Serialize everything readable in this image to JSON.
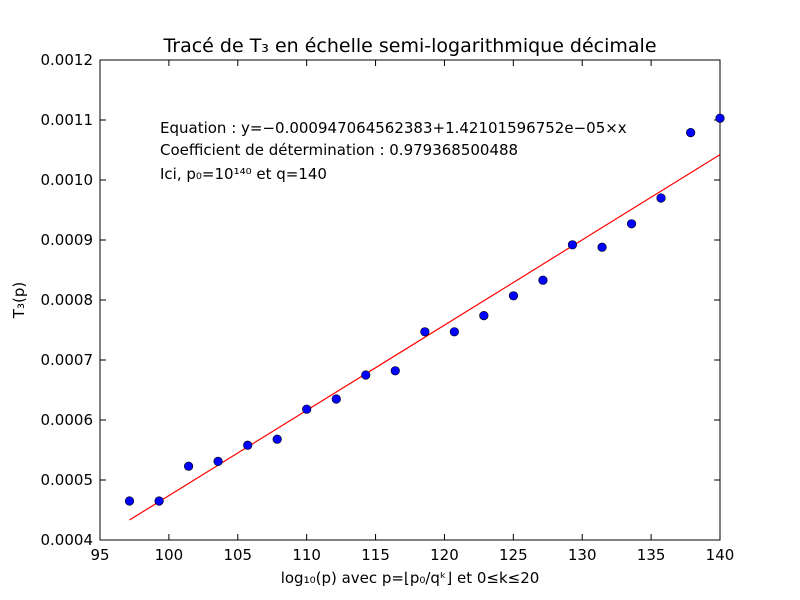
{
  "chart_data": {
    "type": "scatter",
    "title": "Tracé de T₃ en échelle semi-logarithmique décimale",
    "xlabel": "log₁₀(p) avec p=⌊p₀/qᵏ⌋ et 0≤k≤20",
    "ylabel": "T₃(p)",
    "xlim": [
      95,
      140
    ],
    "ylim": [
      0.0004,
      0.0012
    ],
    "grid": false,
    "x_ticks": [
      95,
      100,
      105,
      110,
      115,
      120,
      125,
      130,
      135,
      140
    ],
    "y_ticks": [
      0.0004,
      0.0005,
      0.0006,
      0.0007,
      0.0008,
      0.0009,
      0.001,
      0.0011,
      0.0012
    ],
    "y_tick_labels": [
      "0.0004",
      "0.0005",
      "0.0006",
      "0.0007",
      "0.0008",
      "0.0009",
      "0.0010",
      "0.0011",
      "0.0012"
    ],
    "series": [
      {
        "kind": "points",
        "color": "#0000ff",
        "x": [
          97.14,
          99.29,
          101.43,
          103.57,
          105.72,
          107.86,
          110.0,
          112.15,
          114.29,
          116.43,
          118.58,
          120.72,
          122.86,
          125.01,
          127.15,
          129.29,
          131.44,
          133.58,
          135.72,
          137.87,
          140.01
        ],
        "y": [
          0.000465,
          0.000465,
          0.000523,
          0.000531,
          0.000558,
          0.000568,
          0.000618,
          0.000635,
          0.000675,
          0.000682,
          0.000747,
          0.000747,
          0.000774,
          0.000807,
          0.000833,
          0.000892,
          0.000888,
          0.000927,
          0.00097,
          0.001079,
          0.001103
        ]
      },
      {
        "kind": "fit-line",
        "color": "#ff0000",
        "intercept": -0.000947064562383,
        "slope": 1.42101596752e-05,
        "x_range": [
          97.14,
          140.01
        ]
      }
    ],
    "annotations": [
      "Equation : y=−0.000947064562383+1.42101596752e−05×x",
      "Coefficient de détermination : 0.979368500488",
      "Ici, p₀=10¹⁴⁰ et q=140"
    ]
  }
}
